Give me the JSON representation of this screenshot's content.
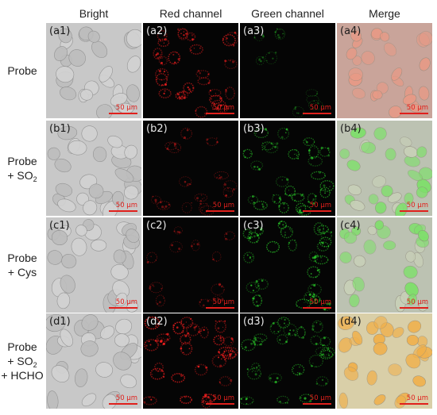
{
  "columns": [
    "Bright",
    "Red channel",
    "Green channel",
    "Merge"
  ],
  "rows": [
    {
      "label_lines": [
        {
          "text": "Probe"
        }
      ]
    },
    {
      "label_lines": [
        {
          "text": "Probe"
        },
        {
          "text": "+ SO",
          "sub": "2"
        }
      ]
    },
    {
      "label_lines": [
        {
          "text": "Probe"
        },
        {
          "text": "+ Cys"
        }
      ]
    },
    {
      "label_lines": [
        {
          "text": "Probe"
        },
        {
          "text": "+ SO",
          "sub": "2"
        },
        {
          "text": "+ HCHO"
        }
      ]
    }
  ],
  "panels": [
    [
      "(a1)",
      "(a2)",
      "(a3)",
      "(a4)"
    ],
    [
      "(b1)",
      "(b2)",
      "(b3)",
      "(b4)"
    ],
    [
      "(c1)",
      "(c2)",
      "(c3)",
      "(c4)"
    ],
    [
      "(d1)",
      "(d2)",
      "(d3)",
      "(d4)"
    ]
  ],
  "scale_bar_text": "50 μm",
  "intensity": {
    "red": [
      0.75,
      0.25,
      0.22,
      0.85
    ],
    "green": [
      0.08,
      0.6,
      0.7,
      0.55
    ]
  },
  "colors": {
    "scale_bar": "#e0201c",
    "red_signal": "#ff2020",
    "green_signal": "#2ee22e",
    "bright_bg": "#c8c8c8",
    "dark_bg": "#050505"
  }
}
